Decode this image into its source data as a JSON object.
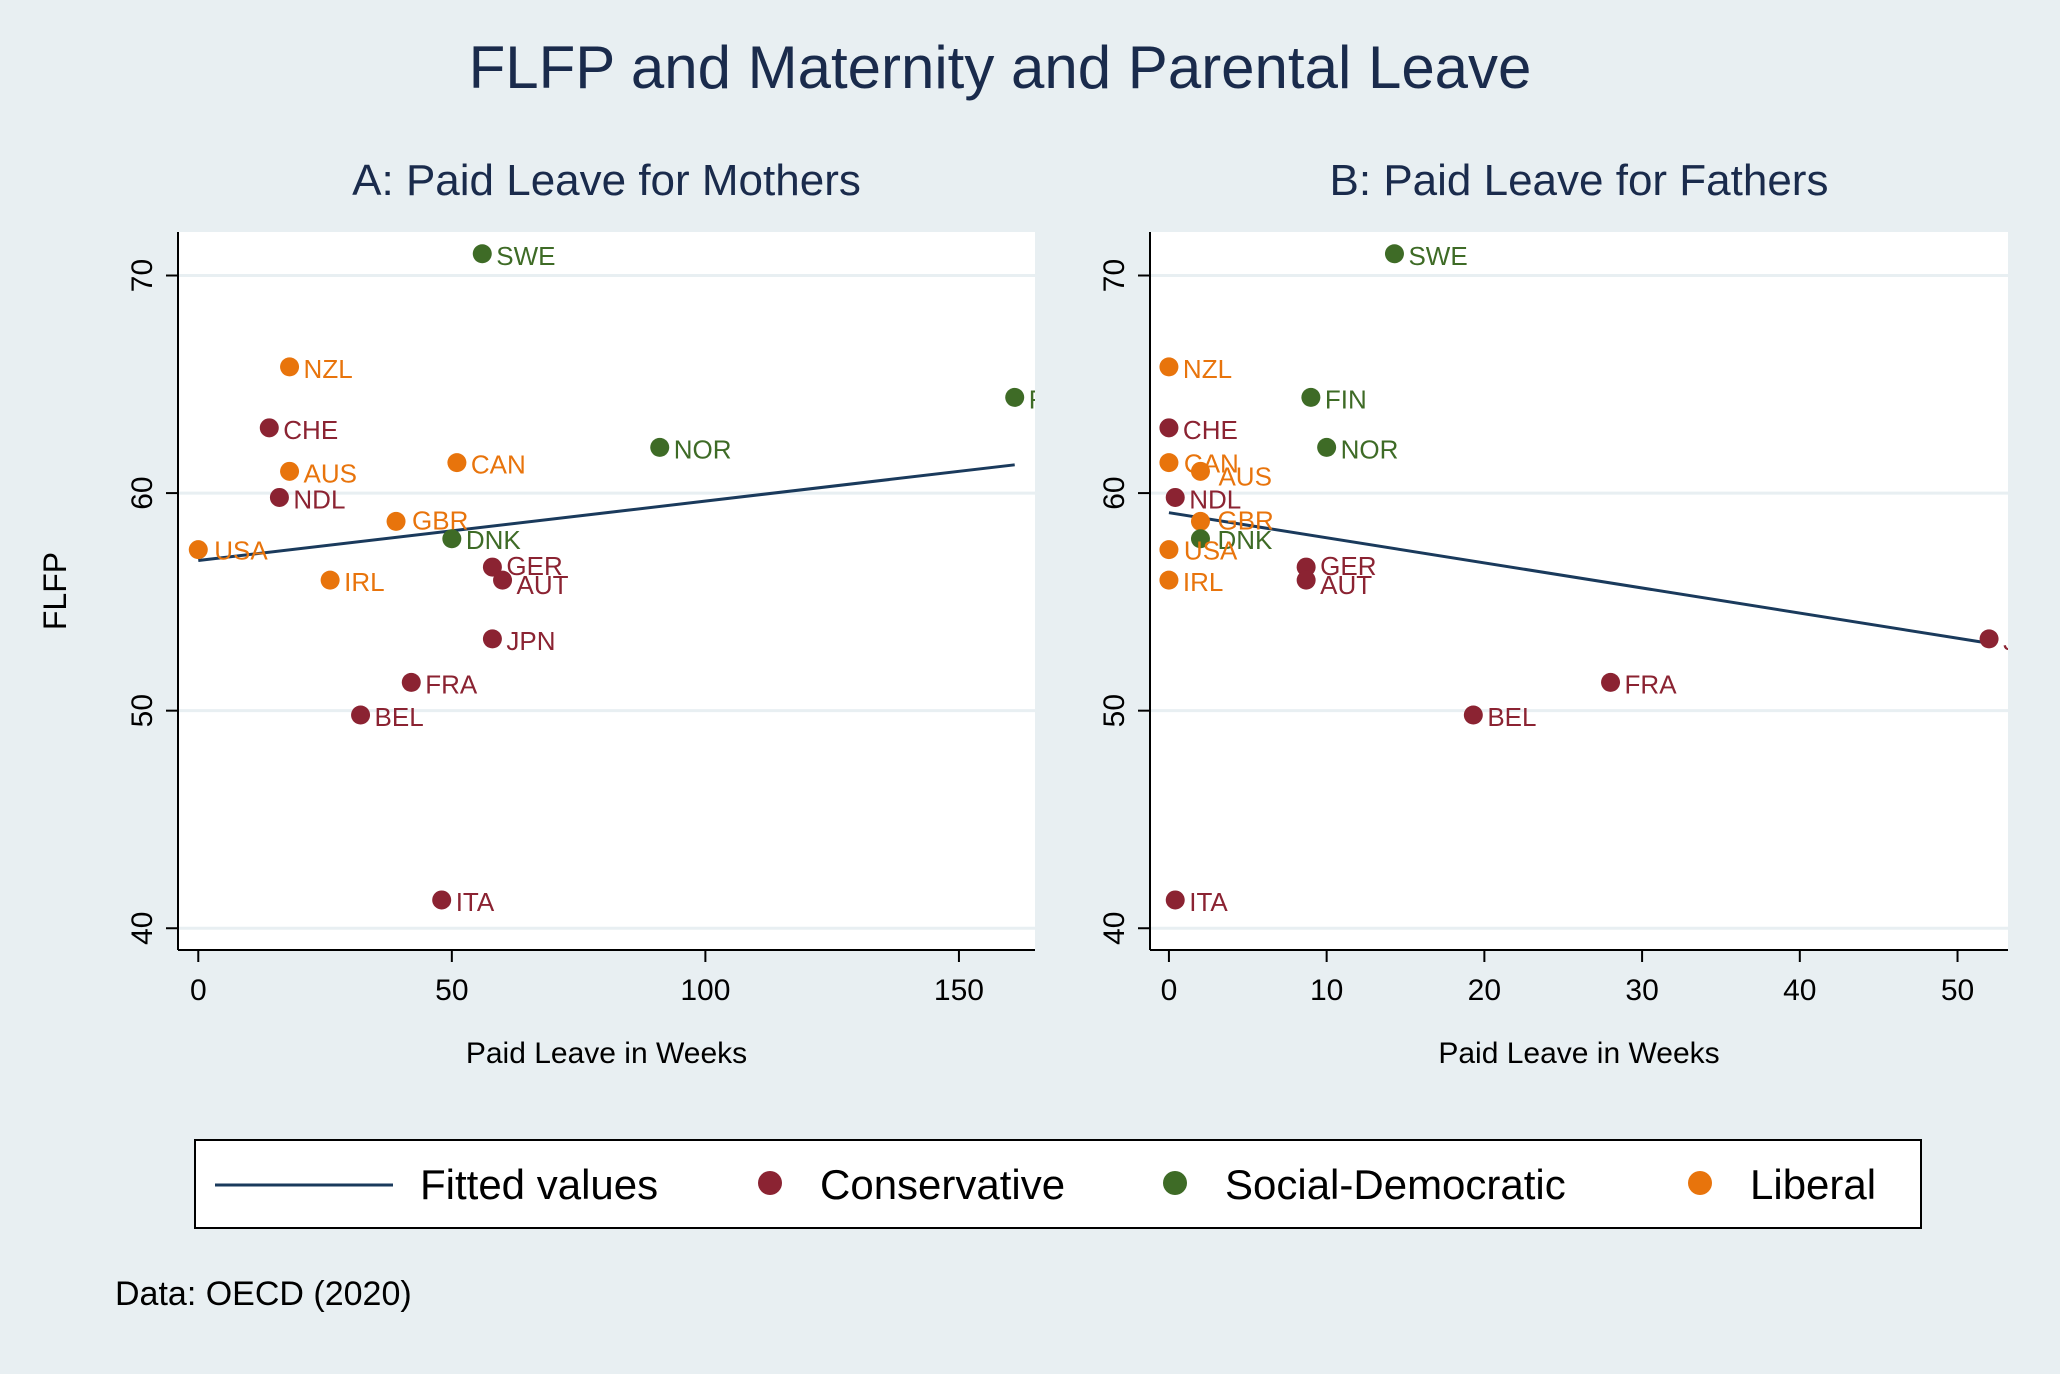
{
  "title": "FLFP and Maternity and Parental Leave",
  "footnote": "Data: OECD (2020)",
  "colors": {
    "background": "#e8eff2",
    "plot_bg": "#ffffff",
    "grid": "#e8eff2",
    "title": "#1a2b4c",
    "fit_line": "#1a3a5c",
    "Conservative": "#8b2332",
    "Social-Democratic": "#3e6b26",
    "Liberal": "#e8740c"
  },
  "legend": {
    "placement": "bottom",
    "items": [
      {
        "label": "Fitted values",
        "kind": "line",
        "color_key": "fit_line"
      },
      {
        "label": "Conservative",
        "kind": "marker",
        "color_key": "Conservative"
      },
      {
        "label": "Social-Democratic",
        "kind": "marker",
        "color_key": "Social-Democratic"
      },
      {
        "label": "Liberal",
        "kind": "marker",
        "color_key": "Liberal"
      }
    ]
  },
  "chart_data": [
    {
      "type": "scatter",
      "title": "A: Paid Leave for Mothers",
      "xlabel": "Paid Leave in Weeks",
      "ylabel": "FLFP",
      "xlim": [
        -4,
        165
      ],
      "ylim": [
        39,
        72
      ],
      "xticks": [
        0,
        50,
        100,
        150
      ],
      "yticks": [
        40,
        50,
        60,
        70
      ],
      "grid": true,
      "fitted_line": {
        "x": [
          0,
          161
        ],
        "y": [
          56.9,
          61.3
        ]
      },
      "points": [
        {
          "label": "SWE",
          "x": 56,
          "y": 71.0,
          "group": "Social-Democratic"
        },
        {
          "label": "NZL",
          "x": 18,
          "y": 65.8,
          "group": "Liberal"
        },
        {
          "label": "FIN",
          "x": 161,
          "y": 64.4,
          "group": "Social-Democratic"
        },
        {
          "label": "CHE",
          "x": 14,
          "y": 63.0,
          "group": "Conservative"
        },
        {
          "label": "NOR",
          "x": 91,
          "y": 62.1,
          "group": "Social-Democratic"
        },
        {
          "label": "CAN",
          "x": 51,
          "y": 61.4,
          "group": "Liberal"
        },
        {
          "label": "AUS",
          "x": 18,
          "y": 61.0,
          "group": "Liberal"
        },
        {
          "label": "NDL",
          "x": 16,
          "y": 59.8,
          "group": "Conservative"
        },
        {
          "label": "GBR",
          "x": 39,
          "y": 58.7,
          "group": "Liberal"
        },
        {
          "label": "DNK",
          "x": 50,
          "y": 57.9,
          "group": "Social-Democratic"
        },
        {
          "label": "USA",
          "x": 0,
          "y": 57.4,
          "group": "Liberal"
        },
        {
          "label": "GER",
          "x": 58,
          "y": 56.6,
          "group": "Conservative"
        },
        {
          "label": "AUT",
          "x": 60,
          "y": 56.0,
          "group": "Conservative"
        },
        {
          "label": "IRL",
          "x": 26,
          "y": 56.0,
          "group": "Liberal"
        },
        {
          "label": "JPN",
          "x": 58,
          "y": 53.3,
          "group": "Conservative"
        },
        {
          "label": "FRA",
          "x": 42,
          "y": 51.3,
          "group": "Conservative"
        },
        {
          "label": "BEL",
          "x": 32,
          "y": 49.8,
          "group": "Conservative"
        },
        {
          "label": "ITA",
          "x": 48,
          "y": 41.3,
          "group": "Conservative"
        }
      ]
    },
    {
      "type": "scatter",
      "title": "B: Paid Leave for Fathers",
      "xlabel": "Paid Leave in Weeks",
      "ylabel": "",
      "xlim": [
        -1.2,
        53.2
      ],
      "ylim": [
        39,
        72
      ],
      "xticks": [
        0,
        10,
        20,
        30,
        40,
        50
      ],
      "yticks": [
        40,
        50,
        60,
        70
      ],
      "grid": true,
      "fitted_line": {
        "x": [
          0,
          52
        ],
        "y": [
          59.1,
          53.1
        ]
      },
      "points": [
        {
          "label": "SWE",
          "x": 14.3,
          "y": 71.0,
          "group": "Social-Democratic"
        },
        {
          "label": "NZL",
          "x": 0,
          "y": 65.8,
          "group": "Liberal"
        },
        {
          "label": "FIN",
          "x": 9,
          "y": 64.4,
          "group": "Social-Democratic"
        },
        {
          "label": "CHE",
          "x": 0,
          "y": 63.0,
          "group": "Conservative"
        },
        {
          "label": "NOR",
          "x": 10,
          "y": 62.1,
          "group": "Social-Democratic"
        },
        {
          "label": "CAN",
          "x": 0,
          "y": 61.4,
          "group": "Liberal"
        },
        {
          "label": "AUS",
          "x": 2,
          "y": 61.0,
          "group": "Liberal"
        },
        {
          "label": "NDL",
          "x": 0.4,
          "y": 59.8,
          "group": "Conservative"
        },
        {
          "label": "GBR",
          "x": 2,
          "y": 58.7,
          "group": "Liberal"
        },
        {
          "label": "DNK",
          "x": 2,
          "y": 57.9,
          "group": "Social-Democratic"
        },
        {
          "label": "USA",
          "x": 0,
          "y": 57.4,
          "group": "Liberal"
        },
        {
          "label": "GER",
          "x": 8.7,
          "y": 56.6,
          "group": "Conservative"
        },
        {
          "label": "AUT",
          "x": 8.7,
          "y": 56.0,
          "group": "Conservative"
        },
        {
          "label": "IRL",
          "x": 0,
          "y": 56.0,
          "group": "Liberal"
        },
        {
          "label": "JPN",
          "x": 52,
          "y": 53.3,
          "group": "Conservative"
        },
        {
          "label": "FRA",
          "x": 28,
          "y": 51.3,
          "group": "Conservative"
        },
        {
          "label": "BEL",
          "x": 19.3,
          "y": 49.8,
          "group": "Conservative"
        },
        {
          "label": "ITA",
          "x": 0.4,
          "y": 41.3,
          "group": "Conservative"
        }
      ]
    }
  ]
}
